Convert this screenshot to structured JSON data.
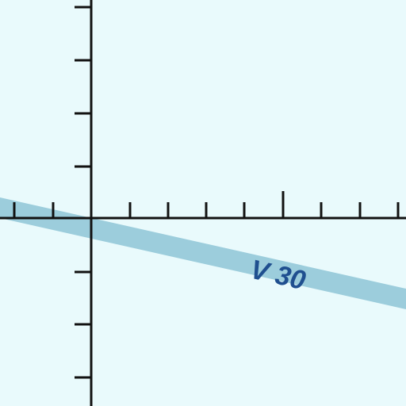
{
  "diagram": {
    "background_color": "#e9fafc",
    "axis_color": "#111111",
    "band": {
      "label": "V 30",
      "band_color": "#9ccddc",
      "label_color": "#1f4f8f"
    }
  }
}
